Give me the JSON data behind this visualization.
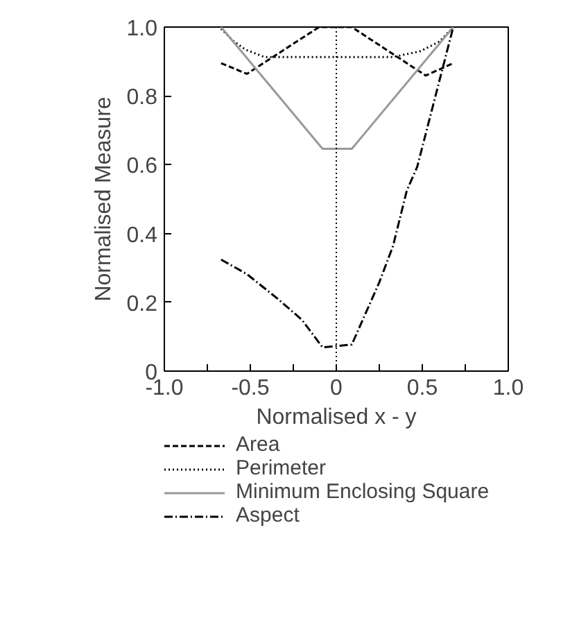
{
  "chart_data": {
    "type": "line",
    "xlabel": "Normalised x - y",
    "ylabel": "Normalised Measure",
    "xlim": [
      -1.0,
      1.0
    ],
    "ylim": [
      0,
      1.0
    ],
    "xticks": [
      {
        "value": -1.0,
        "label": "-1.0"
      },
      {
        "value": -0.75,
        "label": null
      },
      {
        "value": -0.5,
        "label": "-0.5"
      },
      {
        "value": -0.25,
        "label": null
      },
      0,
      {
        "value": 0.25,
        "label": null
      },
      0.5,
      {
        "value": 0.75,
        "label": null
      },
      {
        "value": 1.0,
        "label": "1.0"
      }
    ],
    "yticks": [
      0,
      0.2,
      0.4,
      0.6,
      0.8,
      {
        "value": 1.0,
        "label": "1.0"
      }
    ],
    "grid": false,
    "legend": "bottom",
    "marker": "none",
    "ref_lines": [
      {
        "axis": "x",
        "value": 0,
        "label": null,
        "color": "#000000",
        "line_style": "dotted"
      }
    ],
    "series": [
      {
        "name": "Area",
        "color": "#000000",
        "line_style": "dashed",
        "x": [
          -0.67,
          -0.52,
          -0.1,
          0.09,
          0.52,
          0.68
        ],
        "values": [
          0.895,
          0.864,
          1.0,
          1.0,
          0.859,
          0.895
        ]
      },
      {
        "name": "Perimeter",
        "color": "#000000",
        "line_style": "dotted",
        "x": [
          -0.67,
          -0.6,
          -0.53,
          -0.42,
          0.33,
          0.49,
          0.6,
          0.68
        ],
        "values": [
          0.995,
          0.96,
          0.935,
          0.913,
          0.913,
          0.93,
          0.958,
          1.0
        ]
      },
      {
        "name": "Minimum Enclosing Square",
        "color": "#999999",
        "line_style": "solid",
        "x": [
          -0.67,
          -0.08,
          0.09,
          0.68
        ],
        "values": [
          1.0,
          0.646,
          0.646,
          1.0
        ]
      },
      {
        "name": "Aspect",
        "color": "#000000",
        "line_style": "dashdot",
        "x": [
          -0.67,
          -0.52,
          -0.34,
          -0.2,
          -0.08,
          0.09,
          0.25,
          0.33,
          0.41,
          0.47,
          0.68
        ],
        "values": [
          0.324,
          0.282,
          0.21,
          0.149,
          0.069,
          0.077,
          0.258,
          0.364,
          0.525,
          0.593,
          1.0
        ]
      }
    ]
  }
}
